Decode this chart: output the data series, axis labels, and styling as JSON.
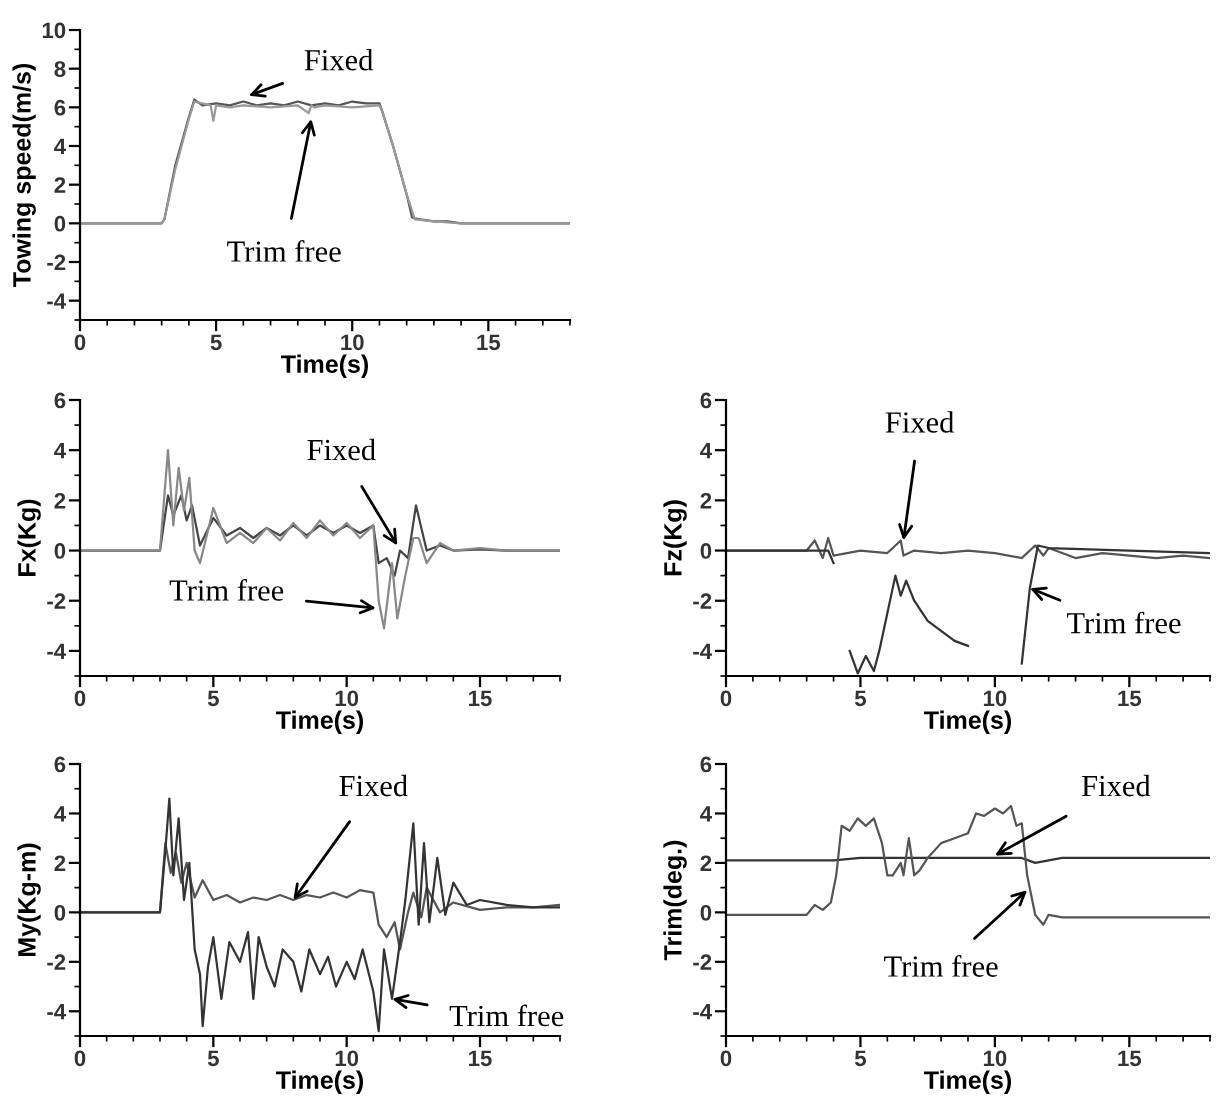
{
  "chart_data": [
    {
      "type": "line",
      "xlabel": "Time(s)",
      "ylabel": "Towing speed(m/s)",
      "xlim": [
        0,
        18
      ],
      "xticks": [
        0,
        5,
        10,
        15
      ],
      "ylim": [
        -5,
        10
      ],
      "yticks": [
        -4,
        -2,
        0,
        2,
        4,
        6,
        8,
        10
      ],
      "grid": false,
      "series": [
        {
          "color": "#555555",
          "x": [
            0,
            3,
            3.1,
            3.5,
            4,
            4.2,
            4.5,
            5,
            5.5,
            6,
            6.5,
            7,
            7.5,
            8,
            8.5,
            9,
            9.5,
            10,
            10.5,
            11,
            11.1,
            11.5,
            12,
            12.2,
            12.5,
            13,
            13.5,
            14,
            18
          ],
          "values": [
            0,
            0,
            0.2,
            3,
            5.5,
            6.4,
            6.1,
            6.2,
            6.1,
            6.3,
            6.1,
            6.2,
            6.1,
            6.3,
            6.1,
            6.2,
            6.1,
            6.3,
            6.2,
            6.2,
            5.8,
            4,
            1.5,
            0.3,
            0.2,
            0.1,
            0.1,
            0,
            0
          ]
        },
        {
          "color": "#999999",
          "x": [
            0,
            3,
            3.1,
            3.5,
            4,
            4.2,
            4.8,
            4.9,
            5,
            5.5,
            6,
            7,
            8,
            8.4,
            8.5,
            8.6,
            9,
            10,
            11,
            11.1,
            11.5,
            12,
            12.3,
            13,
            14,
            18
          ],
          "values": [
            0,
            0,
            0.2,
            2.8,
            5.4,
            6.3,
            6.1,
            5.3,
            6.1,
            6.0,
            6.1,
            6.0,
            6.1,
            5.7,
            6.1,
            6.0,
            6.1,
            6.0,
            6.1,
            5.8,
            4,
            1.5,
            0.2,
            0.1,
            0,
            0
          ]
        }
      ],
      "annotations": [
        {
          "text": "Fixed",
          "x": 6.2,
          "y": 6.6
        },
        {
          "text": "Trim free",
          "x": 8.5,
          "y": 5.4
        }
      ]
    },
    {
      "type": "line",
      "xlabel": "Time(s)",
      "ylabel": "Fx(Kg)",
      "xlim": [
        0,
        18
      ],
      "xticks": [
        0,
        5,
        10,
        15
      ],
      "ylim": [
        -5,
        6
      ],
      "yticks": [
        -4,
        -2,
        0,
        2,
        4,
        6
      ],
      "grid": false,
      "series": [
        {
          "color": "#444444",
          "x": [
            0,
            3,
            3.3,
            3.5,
            3.8,
            4,
            4.2,
            4.5,
            5,
            5.5,
            6,
            6.5,
            7,
            7.5,
            8,
            8.5,
            9,
            9.5,
            10,
            10.5,
            11,
            11.2,
            11.5,
            11.8,
            12,
            12.3,
            12.6,
            13,
            13.5,
            14,
            15,
            16,
            18
          ],
          "values": [
            0,
            0,
            2.2,
            1.4,
            2.2,
            1.2,
            1.8,
            0.2,
            1.3,
            0.6,
            0.9,
            0.5,
            0.9,
            0.6,
            1.0,
            0.6,
            1.0,
            0.7,
            1.0,
            0.7,
            1.0,
            -0.5,
            -0.3,
            -1.0,
            0.0,
            -0.3,
            1.8,
            0.0,
            0.2,
            0.0,
            0.05,
            0.0,
            0.0
          ]
        },
        {
          "color": "#888888",
          "x": [
            0,
            3,
            3.3,
            3.5,
            3.7,
            3.9,
            4.1,
            4.3,
            4.5,
            4.8,
            5,
            5.5,
            6,
            6.5,
            7,
            7.5,
            8,
            8.5,
            9,
            9.5,
            10,
            10.5,
            11,
            11.2,
            11.4,
            11.7,
            11.9,
            12.2,
            12.5,
            12.7,
            13,
            13.5,
            14,
            15,
            16,
            18
          ],
          "values": [
            0,
            0,
            4.0,
            1.0,
            3.3,
            1.6,
            2.9,
            0.0,
            -0.5,
            0.8,
            1.7,
            0.3,
            0.7,
            0.3,
            0.9,
            0.4,
            1.1,
            0.5,
            1.2,
            0.6,
            1.1,
            0.5,
            1.0,
            -2.0,
            -3.1,
            -0.5,
            -2.7,
            -1.0,
            0.5,
            0.5,
            -0.5,
            0.3,
            0.0,
            0.1,
            0.0,
            0.0
          ]
        }
      ],
      "annotations": [
        {
          "text": "Fixed",
          "x": 11.9,
          "y": 0.2
        },
        {
          "text": "Trim free",
          "x": 11.1,
          "y": -2.3
        }
      ]
    },
    {
      "type": "line",
      "xlabel": "Time(s)",
      "ylabel": "Fz(Kg)",
      "xlim": [
        0,
        18
      ],
      "xticks": [
        0,
        5,
        10,
        15
      ],
      "ylim": [
        -5,
        6
      ],
      "yticks": [
        -4,
        -2,
        0,
        2,
        4,
        6
      ],
      "grid": false,
      "series": [
        {
          "color": "#555555",
          "x": [
            0,
            3,
            3.3,
            3.6,
            3.8,
            4,
            5,
            6,
            6.5,
            6.6,
            7,
            8,
            9,
            10,
            11,
            11.5,
            11.8,
            12,
            13,
            14,
            15,
            16,
            17,
            18
          ],
          "values": [
            0,
            0,
            0.4,
            -0.3,
            0.5,
            -0.2,
            0,
            -0.1,
            0.4,
            -0.2,
            0,
            -0.1,
            0,
            -0.1,
            -0.3,
            0.2,
            -0.2,
            0.1,
            -0.3,
            -0.1,
            -0.2,
            -0.3,
            -0.2,
            -0.3
          ]
        },
        {
          "color": "#333333",
          "x": [
            0,
            3,
            3.8,
            4,
            4.3,
            4.6,
            4.9,
            5.2,
            5.5,
            5.7,
            6,
            6.3,
            6.5,
            6.7,
            7,
            7.5,
            8,
            8.5,
            9,
            9.2,
            9.5,
            10,
            10.5,
            11,
            11.3,
            11.6,
            12,
            18
          ],
          "values": [
            0,
            0,
            0,
            -0.5,
            null,
            -4.0,
            -4.9,
            -4.2,
            -4.8,
            -4.0,
            -2.5,
            -1.0,
            -1.8,
            -1.2,
            -2.0,
            -2.8,
            -3.2,
            -3.6,
            -3.8,
            null,
            null,
            null,
            null,
            -4.5,
            -1.5,
            0.2,
            0.1,
            -0.1
          ]
        }
      ],
      "annotations": [
        {
          "text": "Fixed",
          "x": 6.6,
          "y": 0.4
        },
        {
          "text": "Trim free",
          "x": 11.3,
          "y": -1.5
        }
      ]
    },
    {
      "type": "line",
      "xlabel": "Time(s)",
      "ylabel": "My(Kg-m)",
      "xlim": [
        0,
        18
      ],
      "xticks": [
        0,
        5,
        10,
        15
      ],
      "ylim": [
        -5,
        6
      ],
      "yticks": [
        -4,
        -2,
        0,
        2,
        4,
        6
      ],
      "grid": false,
      "series": [
        {
          "color": "#555555",
          "x": [
            0,
            3,
            3.2,
            3.4,
            3.6,
            3.8,
            4,
            4.3,
            4.6,
            5,
            5.5,
            6,
            6.5,
            7,
            7.5,
            8,
            8.5,
            9,
            9.5,
            10,
            10.5,
            11,
            11.2,
            11.5,
            11.8,
            12,
            12.3,
            12.5,
            12.8,
            13,
            13.5,
            14,
            15,
            16,
            17,
            18
          ],
          "values": [
            0,
            0,
            2.8,
            1.6,
            2.4,
            1.2,
            2.0,
            0.6,
            1.3,
            0.5,
            0.7,
            0.4,
            0.6,
            0.5,
            0.7,
            0.5,
            0.7,
            0.6,
            0.8,
            0.6,
            0.9,
            0.8,
            -0.5,
            -1.0,
            -0.4,
            -1.5,
            0.0,
            0.8,
            -0.2,
            1.0,
            0.0,
            0.4,
            0.1,
            0.2,
            0.2,
            0.3
          ]
        },
        {
          "color": "#333333",
          "x": [
            0,
            3,
            3.2,
            3.35,
            3.5,
            3.7,
            3.9,
            4.1,
            4.3,
            4.5,
            4.6,
            4.8,
            5,
            5.3,
            5.6,
            6,
            6.3,
            6.5,
            6.7,
            7,
            7.3,
            7.6,
            8,
            8.3,
            8.6,
            9,
            9.3,
            9.6,
            10,
            10.3,
            10.6,
            11,
            11.2,
            11.4,
            11.7,
            12,
            12.2,
            12.5,
            12.7,
            12.9,
            13.1,
            13.4,
            13.7,
            14,
            14.5,
            15,
            16,
            17,
            18
          ],
          "values": [
            0,
            0,
            2.5,
            4.6,
            1.5,
            3.8,
            0.5,
            2.0,
            -1.5,
            -2.5,
            -4.6,
            -2.2,
            -1.0,
            -3.5,
            -1.2,
            -2.0,
            -0.8,
            -3.5,
            -1.0,
            -2.2,
            -3.0,
            -1.5,
            -2.0,
            -3.2,
            -1.5,
            -2.5,
            -1.8,
            -3.0,
            -2.0,
            -2.7,
            -1.5,
            -3.2,
            -4.8,
            -1.5,
            -3.5,
            -1.2,
            0.5,
            3.6,
            -0.5,
            2.8,
            -0.4,
            2.2,
            -0.1,
            1.2,
            0.3,
            0.5,
            0.3,
            0.2,
            0.2
          ]
        }
      ],
      "annotations": [
        {
          "text": "Fixed",
          "x": 8,
          "y": 0.5
        },
        {
          "text": "Trim free",
          "x": 11.7,
          "y": -3.5
        }
      ]
    },
    {
      "type": "line",
      "xlabel": "Time(s)",
      "ylabel": "Trim(deg.)",
      "xlim": [
        0,
        18
      ],
      "xticks": [
        0,
        5,
        10,
        15
      ],
      "ylim": [
        -5,
        6
      ],
      "yticks": [
        -4,
        -2,
        0,
        2,
        4,
        6
      ],
      "grid": false,
      "series": [
        {
          "color": "#333333",
          "x": [
            0,
            3,
            4,
            5,
            6,
            7,
            8,
            9,
            10,
            11,
            11.5,
            12,
            12.5,
            13,
            14,
            15,
            16,
            17,
            18
          ],
          "values": [
            2.1,
            2.1,
            2.1,
            2.2,
            2.2,
            2.2,
            2.2,
            2.2,
            2.2,
            2.2,
            2.0,
            2.1,
            2.2,
            2.2,
            2.2,
            2.2,
            2.2,
            2.2,
            2.2
          ]
        },
        {
          "color": "#555555",
          "x": [
            0,
            3,
            3.3,
            3.6,
            3.9,
            4.1,
            4.3,
            4.6,
            4.9,
            5.2,
            5.5,
            5.8,
            6.0,
            6.2,
            6.5,
            6.6,
            6.8,
            7.0,
            7.2,
            7.5,
            8,
            8.5,
            9,
            9.3,
            9.6,
            10,
            10.3,
            10.6,
            10.8,
            11,
            11.2,
            11.5,
            11.8,
            12,
            12.5,
            13,
            14,
            15,
            16,
            17,
            18
          ],
          "values": [
            -0.1,
            -0.1,
            0.3,
            0.1,
            0.4,
            1.5,
            3.5,
            3.3,
            3.8,
            3.5,
            3.8,
            2.8,
            1.5,
            1.5,
            2.0,
            1.5,
            3.0,
            1.5,
            1.7,
            2.2,
            2.8,
            3.0,
            3.2,
            4.0,
            3.9,
            4.2,
            4.0,
            4.3,
            3.5,
            3.6,
            1.5,
            -0.1,
            -0.5,
            -0.1,
            -0.2,
            -0.2,
            -0.2,
            -0.2,
            -0.2,
            -0.2,
            -0.2
          ]
        }
      ],
      "annotations": [
        {
          "text": "Fixed",
          "x": 10,
          "y": 2.3
        },
        {
          "text": "Trim free",
          "x": 11.2,
          "y": 0.9
        }
      ]
    }
  ]
}
